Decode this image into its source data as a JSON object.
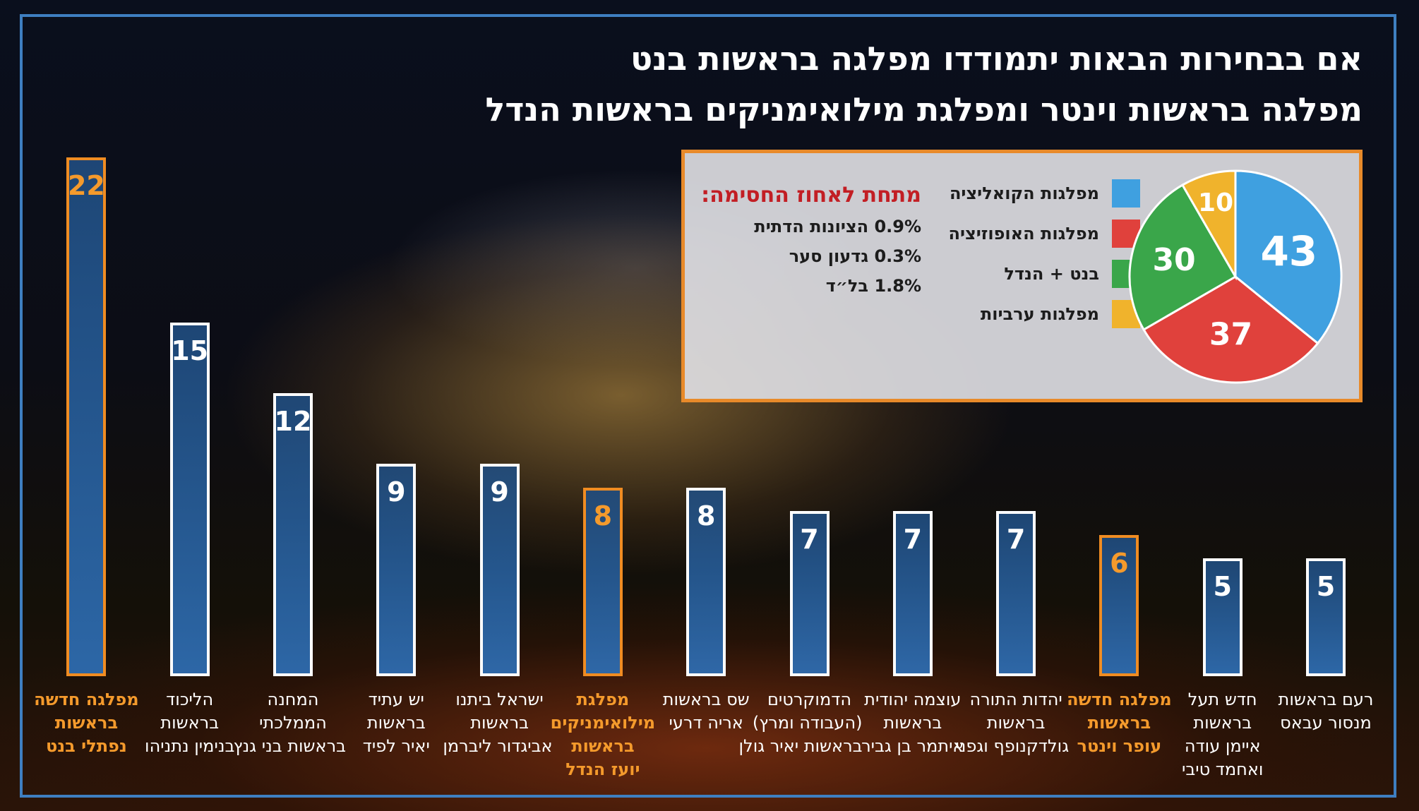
{
  "title_lines": [
    "אם בבחירות הבאות יתמודדו מפלגה בראשות בנט",
    "מפלגה בראשות וינטר ומפלגת מילואימניקים בראשות הנדל"
  ],
  "legend": [
    {
      "label": "מפלגות הקואליציה",
      "color": "#3fa0e0"
    },
    {
      "label": "מפלגות האופוזיציה",
      "color": "#e0413c"
    },
    {
      "label": "בנט + הנדל",
      "color": "#3aa64a"
    },
    {
      "label": "מפלגות ערביות",
      "color": "#f0b32c"
    }
  ],
  "threshold": {
    "title": "מתחת לאחוז החסימה:",
    "items": [
      "0.9% הציונות הדתית",
      "0.3% גדעון סער",
      "1.8% בל״ד"
    ]
  },
  "colors": {
    "frame": "#3e7fc1",
    "highlight": "#f08c22",
    "bar": "#2e6eb4"
  },
  "chart_data": [
    {
      "type": "bar",
      "orientation": "vertical",
      "direction": "right-to-left",
      "ylim": [
        0,
        22
      ],
      "grid": false,
      "categories": [
        "רעם בראשות מנסור עבאס",
        "חדש תעל בראשות איימן עודה ואחמד טיבי",
        "מפלגה חדשה בראשות עופר וינטר",
        "יהדות התורה בראשות גולדקנופף וגפני",
        "עוצמה יהודית בראשות איתמר בן גביר",
        "הדמוקרטים (העבודה ומרץ) בראשות יאיר גולן",
        "שס בראשות אריה דרעי",
        "מפלגת מילואימניקים בראשות יועז הנדל",
        "ישראל ביתנו בראשות אביגדור ליברמן",
        "יש עתיד בראשות יאיר לפיד",
        "המחנה הממלכתי בראשות בני גנץ",
        "הליכוד בראשות בנימין נתניהו",
        "מפלגה חדשה בראשות נפתלי בנט"
      ],
      "label_lines": [
        [
          "רעם בראשות",
          "מנסור עבאס"
        ],
        [
          "חדש תעל",
          "בראשות",
          "איימן עודה",
          "ואחמד טיבי"
        ],
        [
          "מפלגה חדשה",
          "בראשות",
          "עופר וינטר"
        ],
        [
          "יהדות התורה",
          "בראשות",
          "גולדקנופף וגפני"
        ],
        [
          "עוצמה יהודית",
          "בראשות",
          "איתמר בן גביר"
        ],
        [
          "הדמוקרטים",
          "(העבודה ומרץ)",
          "בראשות יאיר גולן"
        ],
        [
          "שס בראשות",
          "אריה דרעי"
        ],
        [
          "מפלגת",
          "מילואימניקים",
          "בראשות",
          "יועז הנדל"
        ],
        [
          "ישראל ביתנו",
          "בראשות",
          "אביגדור ליברמן"
        ],
        [
          "יש עתיד",
          "בראשות",
          "יאיר לפיד"
        ],
        [
          "המחנה",
          "הממלכתי",
          "בראשות בני גנץ"
        ],
        [
          "הליכוד",
          "בראשות",
          "בנימין נתניהו"
        ],
        [
          "מפלגה חדשה",
          "בראשות",
          "נפתלי בנט"
        ]
      ],
      "values": [
        5,
        5,
        6,
        7,
        7,
        7,
        8,
        8,
        9,
        9,
        12,
        15,
        22
      ],
      "highlighted": [
        false,
        false,
        true,
        false,
        false,
        false,
        false,
        true,
        false,
        false,
        false,
        false,
        true
      ]
    },
    {
      "type": "pie",
      "categories": [
        "מפלגות הקואליציה",
        "מפלגות האופוזיציה",
        "בנט + הנדל",
        "מפלגות ערביות"
      ],
      "values": [
        43,
        37,
        30,
        10
      ],
      "colors": [
        "#3fa0e0",
        "#e0413c",
        "#3aa64a",
        "#f0b32c"
      ]
    }
  ]
}
